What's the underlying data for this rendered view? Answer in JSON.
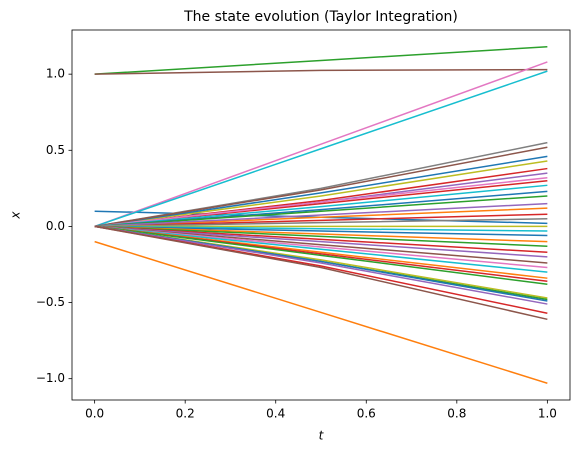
{
  "chart_data": {
    "type": "line",
    "title": "The state evolution (Taylor Integration)",
    "x_label": "t",
    "y_label": "x",
    "x": [
      0,
      0.5,
      1.0
    ],
    "xlim": [
      -0.05,
      1.05
    ],
    "ylim": [
      -1.14,
      1.29
    ],
    "xticks": [
      {
        "value": 0,
        "label": "0.0"
      },
      0.2,
      0.4,
      0.6,
      0.8,
      {
        "value": 1.0,
        "label": "1.0"
      }
    ],
    "yticks": [
      {
        "value": -1.0,
        "label": "−1.0"
      },
      {
        "value": -0.5,
        "label": "−0.5"
      },
      {
        "value": 0,
        "label": "0.0"
      },
      0.5,
      {
        "value": 1.0,
        "label": "1.0"
      }
    ],
    "grid": false,
    "series": [
      {
        "color": "#1f77b4",
        "values": [
          0.1,
          0.06,
          0.02
        ]
      },
      {
        "color": "#ff7f0e",
        "values": [
          -0.1,
          -0.565,
          -1.03
        ]
      },
      {
        "color": "#2ca02c",
        "values": [
          1.0,
          1.09,
          1.18
        ]
      },
      {
        "color": "#d62728",
        "values": [
          0,
          0.17,
          0.38
        ]
      },
      {
        "color": "#9467bd",
        "values": [
          0,
          0.16,
          0.35
        ]
      },
      {
        "color": "#8c564b",
        "values": [
          1.0,
          1.025,
          1.03
        ]
      },
      {
        "color": "#e377c2",
        "values": [
          0,
          0.54,
          1.08
        ]
      },
      {
        "color": "#7f7f7f",
        "values": [
          0,
          0.25,
          0.55
        ]
      },
      {
        "color": "#bcbd22",
        "values": [
          0,
          0.2,
          0.43
        ]
      },
      {
        "color": "#17becf",
        "values": [
          0,
          0.51,
          1.02
        ]
      },
      {
        "color": "#1f77b4",
        "values": [
          0,
          0.22,
          0.46
        ]
      },
      {
        "color": "#8c564b",
        "values": [
          0,
          0.24,
          0.52
        ]
      },
      {
        "color": "#d62728",
        "values": [
          0,
          0.15,
          0.3
        ]
      },
      {
        "color": "#e377c2",
        "values": [
          0,
          0.16,
          0.32
        ]
      },
      {
        "color": "#17becf",
        "values": [
          0,
          0.13,
          0.27
        ]
      },
      {
        "color": "#1f77b4",
        "values": [
          0,
          0.11,
          0.23
        ]
      },
      {
        "color": "#2ca02c",
        "values": [
          0,
          0.1,
          0.2
        ]
      },
      {
        "color": "#ff7f0e",
        "values": [
          0,
          0.06,
          0.12
        ]
      },
      {
        "color": "#d62728",
        "values": [
          0,
          0.04,
          0.08
        ]
      },
      {
        "color": "#9467bd",
        "values": [
          0,
          0.075,
          0.15
        ]
      },
      {
        "color": "#7f7f7f",
        "values": [
          0,
          0.025,
          0.05
        ]
      },
      {
        "color": "#bcbd22",
        "values": [
          0,
          0.0,
          0.0
        ]
      },
      {
        "color": "#17becf",
        "values": [
          0,
          -0.015,
          -0.03
        ]
      },
      {
        "color": "#1f77b4",
        "values": [
          0,
          -0.03,
          -0.06
        ]
      },
      {
        "color": "#ff7f0e",
        "values": [
          0,
          -0.05,
          -0.1
        ]
      },
      {
        "color": "#2ca02c",
        "values": [
          0,
          -0.065,
          -0.13
        ]
      },
      {
        "color": "#d62728",
        "values": [
          0,
          -0.085,
          -0.17
        ]
      },
      {
        "color": "#9467bd",
        "values": [
          0,
          -0.1,
          -0.2
        ]
      },
      {
        "color": "#8c564b",
        "values": [
          0,
          -0.12,
          -0.24
        ]
      },
      {
        "color": "#e377c2",
        "values": [
          0,
          -0.135,
          -0.27
        ]
      },
      {
        "color": "#17becf",
        "values": [
          0,
          -0.15,
          -0.3
        ]
      },
      {
        "color": "#ff7f0e",
        "values": [
          0,
          -0.17,
          -0.34
        ]
      },
      {
        "color": "#d62728",
        "values": [
          0,
          -0.18,
          -0.36
        ]
      },
      {
        "color": "#2ca02c",
        "values": [
          0,
          -0.19,
          -0.38
        ]
      },
      {
        "color": "#bcbd22",
        "values": [
          0,
          -0.22,
          -0.47
        ]
      },
      {
        "color": "#2ca02c",
        "values": [
          0,
          -0.23,
          -0.48
        ]
      },
      {
        "color": "#1f77b4",
        "values": [
          0,
          -0.23,
          -0.49
        ]
      },
      {
        "color": "#9467bd",
        "values": [
          0,
          -0.24,
          -0.51
        ]
      },
      {
        "color": "#d62728",
        "values": [
          0,
          -0.26,
          -0.57
        ]
      },
      {
        "color": "#8c564b",
        "values": [
          0,
          -0.27,
          -0.61
        ]
      }
    ]
  }
}
